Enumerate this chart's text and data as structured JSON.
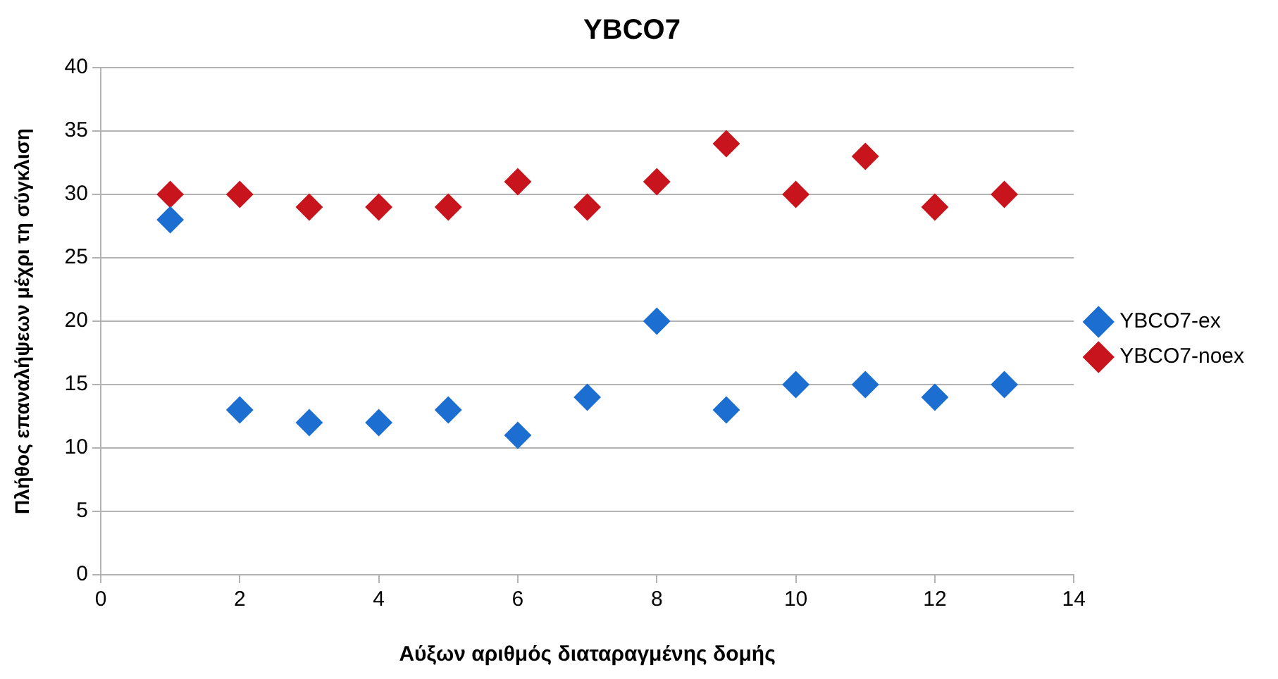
{
  "chart_data": {
    "type": "scatter",
    "title": "YBCO7",
    "xlabel": "Αύξων αριθμός διαταραγμένης δομής",
    "ylabel": "Πλήθος επαναλήψεων μέχρι τη σύγκλιση",
    "x": [
      1,
      2,
      3,
      4,
      5,
      6,
      7,
      8,
      9,
      10,
      11,
      12,
      13
    ],
    "series": [
      {
        "name": "YBCO7-ex",
        "color": "#1c6fd0",
        "values": [
          28,
          13,
          12,
          12,
          13,
          11,
          14,
          20,
          13,
          15,
          15,
          14,
          15
        ]
      },
      {
        "name": "YBCO7-noex",
        "color": "#c8141c",
        "values": [
          30,
          30,
          29,
          29,
          29,
          31,
          29,
          31,
          34,
          30,
          33,
          29,
          30
        ]
      }
    ],
    "xlim": [
      0,
      14
    ],
    "xticks": [
      0,
      2,
      4,
      6,
      8,
      10,
      12,
      14
    ],
    "ylim": [
      0,
      40
    ],
    "yticks": [
      0,
      5,
      10,
      15,
      20,
      25,
      30,
      35,
      40
    ],
    "grid": "y",
    "legend": "right",
    "marker": "diamond"
  }
}
